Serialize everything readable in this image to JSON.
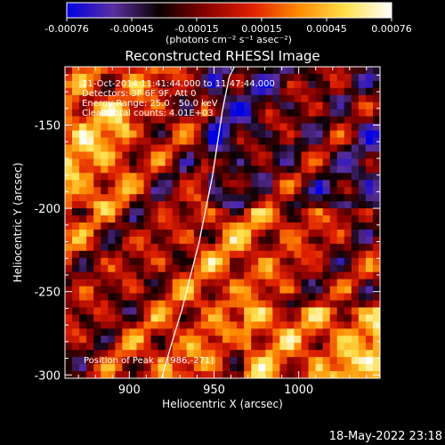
{
  "chart_data": {
    "type": "heatmap",
    "title": "Reconstructed RHESSI Image",
    "xlabel": "Heliocentric X (arcsec)",
    "ylabel": "Heliocentric Y (arcsec)",
    "xlim": [
      862,
      1048
    ],
    "ylim": [
      -302,
      -115
    ],
    "xticks": [
      900,
      950,
      1000
    ],
    "yticks": [
      -150,
      -200,
      -250,
      -300
    ],
    "colorbar": {
      "range": [
        -0.00076,
        0.00076
      ],
      "ticks": [
        "-0.00076",
        "-0.00045",
        "-0.00015",
        "0.00015",
        "0.00045",
        "0.00076"
      ],
      "label": "(photons cm⁻² s⁻¹ asec⁻²)",
      "colormap": [
        "#0000e6",
        "#5a2ea0",
        "#0a0000",
        "#8a0000",
        "#e02000",
        "#ff8a00",
        "#ffe04a",
        "#ffffff"
      ]
    },
    "info_lines": [
      "31-Oct-2014 11:41:44.000 to 11:47:44.000",
      "Detectors: 3F 6F 9F, Att 0",
      "Energy Range: 25.0 - 50.0 keV",
      "Clean     Total counts: 4.01E+03"
    ],
    "peak_text": "Position of Peak = [986,-271]",
    "limb_curve": {
      "x": [
        919,
        925,
        931,
        936,
        941,
        945,
        949,
        952,
        955,
        959,
        962
      ],
      "y": [
        -302,
        -281,
        -261,
        -241,
        -221,
        -201,
        -181,
        -161,
        -141,
        -121,
        -115
      ]
    }
  },
  "footer": {
    "timestamp": "18-May-2022 23:18"
  }
}
